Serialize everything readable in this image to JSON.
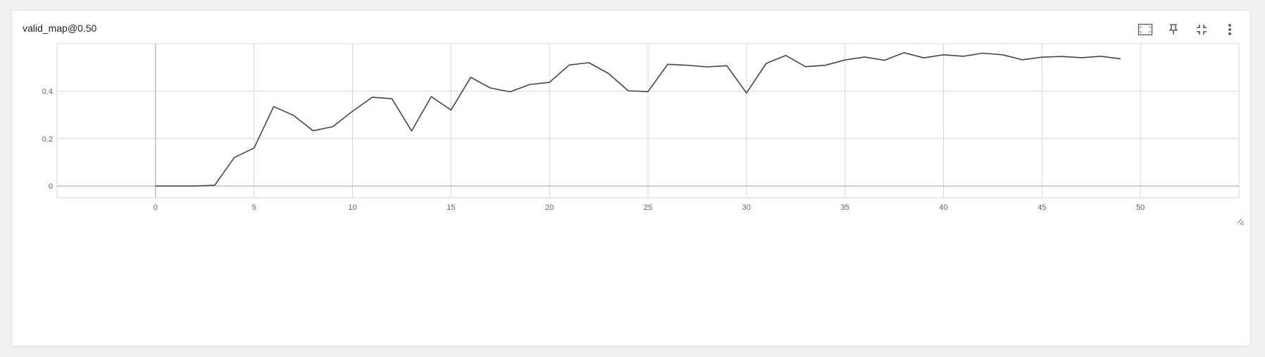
{
  "card": {
    "title": "valid_map@0.50"
  },
  "toolbar": {
    "icons": [
      "fit-domain-icon",
      "pin-icon",
      "collapse-icon",
      "more-vert-icon"
    ]
  },
  "colors": {
    "line": "#3c4658",
    "grid": "#d6d6d6",
    "zero_axis": "#9e9e9e",
    "icon": "#616161"
  },
  "chart_data": {
    "type": "line",
    "title": "valid_map@0.50",
    "xlabel": "",
    "ylabel": "",
    "xlim": [
      -5,
      55
    ],
    "ylim": [
      -0.05,
      0.6
    ],
    "x_ticks": [
      0,
      5,
      10,
      15,
      20,
      25,
      30,
      35,
      40,
      45,
      50
    ],
    "x_tick_labels": [
      "0",
      "5",
      "10",
      "15",
      "20",
      "25",
      "30",
      "35",
      "40",
      "45",
      "50"
    ],
    "y_ticks": [
      0,
      0.2,
      0.4
    ],
    "y_tick_labels": [
      "0",
      "0.2",
      "0.4"
    ],
    "grid": true,
    "series": [
      {
        "x": [
          0,
          1,
          2,
          3,
          4,
          5,
          6,
          7,
          8,
          9,
          10,
          11,
          12,
          13,
          14,
          15,
          16,
          17,
          18,
          19,
          20,
          21,
          22,
          23,
          24,
          25,
          26,
          27,
          28,
          29,
          30,
          31,
          32,
          33,
          34,
          35,
          36,
          37,
          38,
          39,
          40,
          41,
          42,
          43,
          44,
          45,
          46,
          47,
          48,
          49
        ],
        "values": [
          0.0,
          0.0,
          0.0,
          0.003,
          0.12,
          0.16,
          0.335,
          0.298,
          0.233,
          0.25,
          0.315,
          0.374,
          0.368,
          0.232,
          0.377,
          0.32,
          0.458,
          0.413,
          0.397,
          0.428,
          0.437,
          0.51,
          0.52,
          0.474,
          0.401,
          0.398,
          0.513,
          0.509,
          0.502,
          0.507,
          0.392,
          0.517,
          0.55,
          0.503,
          0.509,
          0.531,
          0.544,
          0.53,
          0.562,
          0.54,
          0.553,
          0.547,
          0.56,
          0.553,
          0.532,
          0.543,
          0.546,
          0.541,
          0.547,
          0.536
        ]
      }
    ]
  }
}
